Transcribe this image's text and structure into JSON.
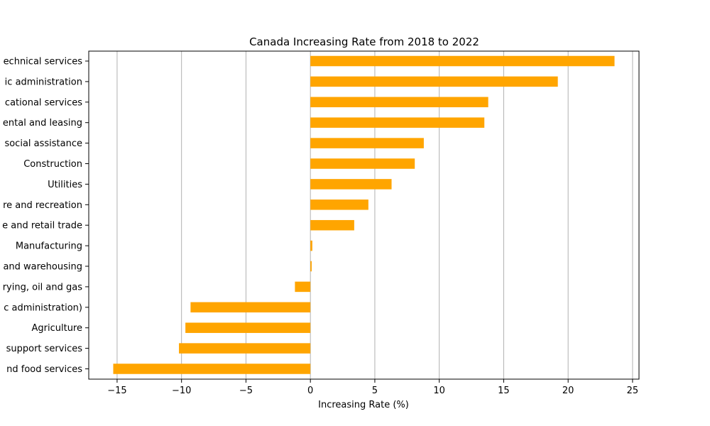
{
  "chart_data": {
    "type": "bar",
    "orientation": "horizontal",
    "title": "Canada Increasing Rate from 2018 to 2022",
    "xlabel": "Increasing Rate (%)",
    "ylabel": "",
    "xlim": [
      -17.2,
      25.5
    ],
    "xticks": [
      -15,
      -10,
      -5,
      0,
      5,
      10,
      15,
      20,
      25
    ],
    "xtick_labels": [
      "−15",
      "−10",
      "−5",
      "0",
      "5",
      "10",
      "15",
      "20",
      "25"
    ],
    "grid": "vertical",
    "bar_color": "#ffa500",
    "categories": [
      "echnical services",
      "ic administration",
      "cational services",
      "ental and leasing",
      "social assistance",
      "Construction",
      "Utilities",
      "re and recreation",
      "e and retail trade",
      "Manufacturing",
      "and warehousing",
      "rying, oil and gas",
      "c administration)",
      "Agriculture",
      "support services",
      "nd food services"
    ],
    "values": [
      23.6,
      19.2,
      13.8,
      13.5,
      8.8,
      8.1,
      6.3,
      4.5,
      3.4,
      0.15,
      0.1,
      -1.2,
      -9.3,
      -9.7,
      -10.2,
      -15.3
    ]
  }
}
